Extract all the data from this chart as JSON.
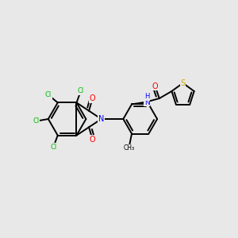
{
  "background_color": "#e8e8e8",
  "bond_color": "#000000",
  "atom_colors": {
    "Cl": "#00bb00",
    "O": "#ff0000",
    "N": "#0000ff",
    "S": "#ccaa00",
    "C": "#000000",
    "H": "#000000"
  },
  "figsize": [
    3.0,
    3.0
  ],
  "dpi": 100
}
